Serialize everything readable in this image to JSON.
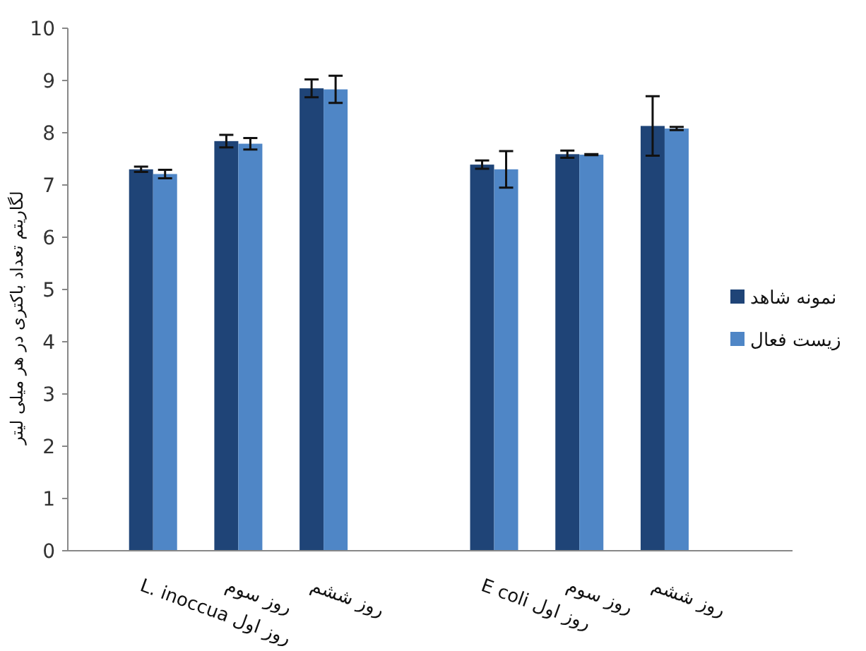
{
  "chart_data": {
    "type": "bar",
    "ylabel": "لگاریتم تعداد باکتری در هر میلی لیتر",
    "categories": [
      "L. inoccua روز اول",
      "روز سوم",
      "روز ششم",
      null,
      "E coli روز اول",
      "روز سوم",
      "روز ششم"
    ],
    "series": [
      {
        "name": "نمونه شاهد",
        "color": "#1f4477",
        "values": [
          7.3,
          7.84,
          8.85,
          null,
          7.39,
          7.59,
          8.13
        ],
        "errors": [
          0.05,
          0.12,
          0.17,
          null,
          0.08,
          0.07,
          0.57
        ]
      },
      {
        "name": "زیست فعال",
        "color": "#4f86c6",
        "values": [
          7.21,
          7.79,
          8.83,
          null,
          7.3,
          7.58,
          8.08
        ],
        "errors": [
          0.08,
          0.11,
          0.26,
          null,
          0.35,
          0.01,
          0.03
        ]
      }
    ],
    "ylim": [
      0,
      10
    ],
    "yticks": [
      0,
      1,
      2,
      3,
      4,
      5,
      6,
      7,
      8,
      9,
      10
    ],
    "legend": "right"
  }
}
